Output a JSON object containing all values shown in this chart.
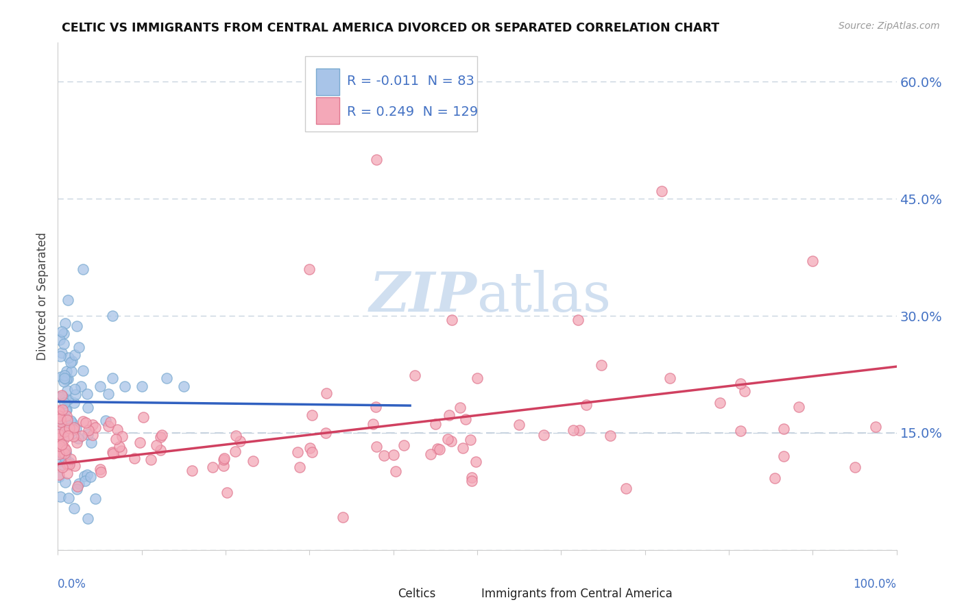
{
  "title": "CELTIC VS IMMIGRANTS FROM CENTRAL AMERICA DIVORCED OR SEPARATED CORRELATION CHART",
  "source": "Source: ZipAtlas.com",
  "ylabel": "Divorced or Separated",
  "legend_celtics_R": "-0.011",
  "legend_celtics_N": "83",
  "legend_immigrants_R": "0.249",
  "legend_immigrants_N": "129",
  "celtics_color": "#a8c4e8",
  "immigrants_color": "#f4a8b8",
  "celtics_edge_color": "#7aaad0",
  "immigrants_edge_color": "#e07890",
  "celtics_line_color": "#3060c0",
  "immigrants_line_color": "#d04060",
  "watermark_color": "#d0dff0",
  "background_color": "#ffffff",
  "grid_color": "#c8d4e0",
  "tick_label_color": "#4472c4",
  "right_yticklabels": [
    "",
    "15.0%",
    "30.0%",
    "45.0%",
    "60.0%"
  ],
  "xlim": [
    0.0,
    1.0
  ],
  "ylim": [
    0.0,
    0.65
  ],
  "yticks": [
    0.0,
    0.15,
    0.3,
    0.45,
    0.6
  ],
  "celtics_line_x": [
    0.0,
    0.42
  ],
  "celtics_line_y": [
    0.19,
    0.185
  ],
  "immigrants_line_x": [
    0.0,
    1.0
  ],
  "immigrants_line_y": [
    0.11,
    0.235
  ]
}
